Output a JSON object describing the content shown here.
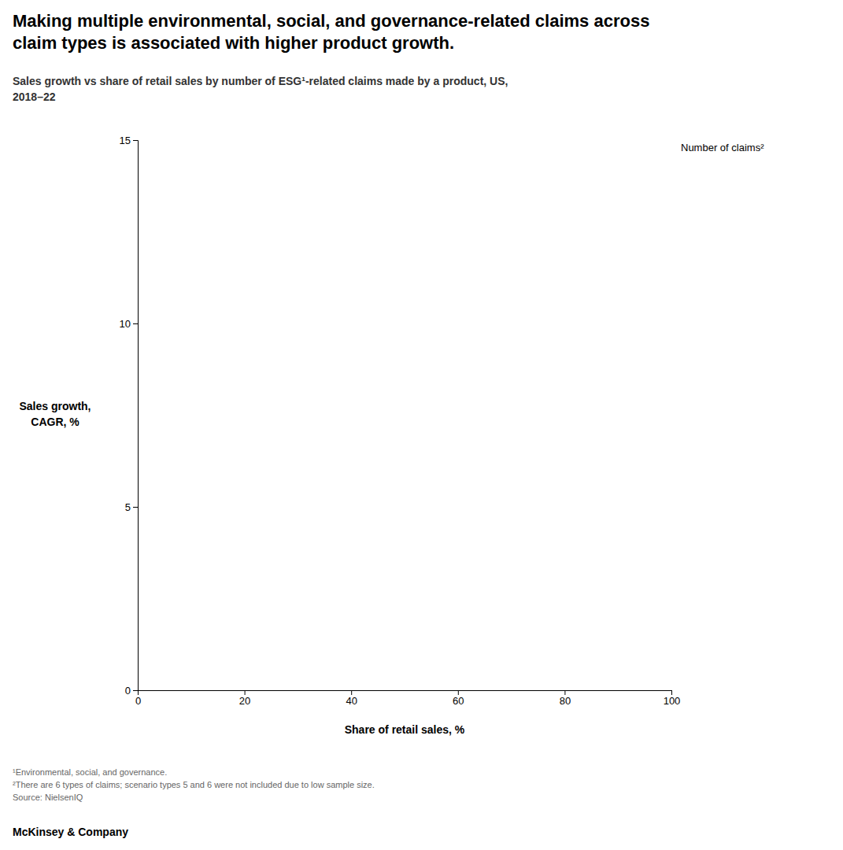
{
  "chart_data": {
    "type": "scatter",
    "title": [
      "Making multiple environmental, social, and governance-related claims across",
      "claim types is associated with higher product growth."
    ],
    "subtitle": [
      "Sales growth vs share of retail sales by number of ESG¹-related claims made by a product, US,",
      "2018–22"
    ],
    "x_label": "Share of retail sales, %",
    "y_label": [
      "Sales growth,",
      "CAGR, %"
    ],
    "xlim": [
      0,
      100
    ],
    "ylim": [
      0,
      15
    ],
    "xticks": [
      0,
      20,
      40,
      60,
      80,
      100
    ],
    "yticks": [
      0,
      5,
      10,
      15
    ],
    "grid": false,
    "legend_title": "Number of claims²",
    "footnotes": [
      "¹Environmental, social, and governance.",
      "²There are 6 types of claims; scenario types 5 and 6 were not included due to low sample size.",
      "Source: NielsenIQ"
    ],
    "brand": "McKinsey & Company"
  }
}
